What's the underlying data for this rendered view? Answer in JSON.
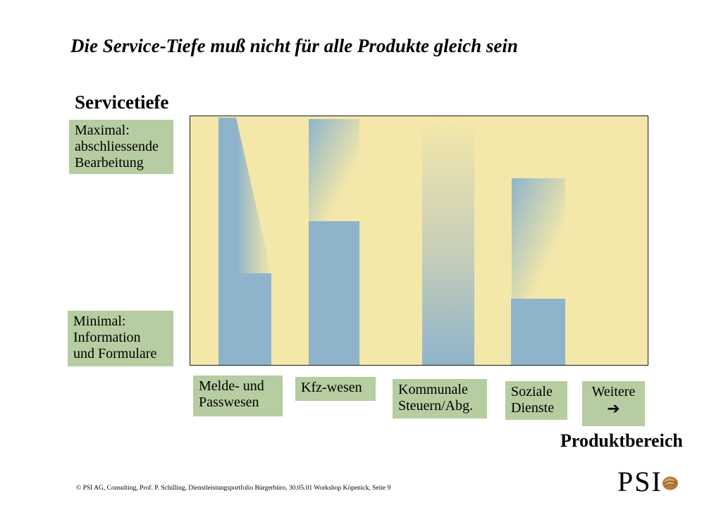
{
  "title": "Die Service-Tiefe muß nicht für alle Produkte gleich sein",
  "y_axis_label": "Servicetiefe",
  "x_axis_label": "Produktbereich",
  "y_levels": {
    "max_text": "Maximal:\nabschliessende\nBearbeitung",
    "min_text": "Minimal:\nInformation\nund Formulare"
  },
  "categories": [
    {
      "label": "Melde- und\nPasswesen",
      "solid_level": 0.37,
      "max_level": 1.0
    },
    {
      "label": "Kfz-wesen",
      "solid_level": 0.58,
      "max_level": 1.0
    },
    {
      "label": "Kommunale\nSteuern/Abg.",
      "solid_level": 0.0,
      "max_level": 1.0
    },
    {
      "label": "Soziale\nDienste",
      "solid_level": 0.27,
      "max_level": 0.75
    },
    {
      "label": "Weitere",
      "solid_level": null,
      "max_level": null
    }
  ],
  "weitere_arrow": "➔",
  "colors": {
    "plot_bg": "#f3e8a9",
    "bar": "#8eb4cb",
    "label_box": "#b5cda0"
  },
  "footer": "© PSI AG, Consulting, Prof. P. Schilling, Dienstleistungsportfolio Bürgerbüro, 30.05.01 Workshop Köpenick, Seite 9",
  "logo_text": "PSI"
}
